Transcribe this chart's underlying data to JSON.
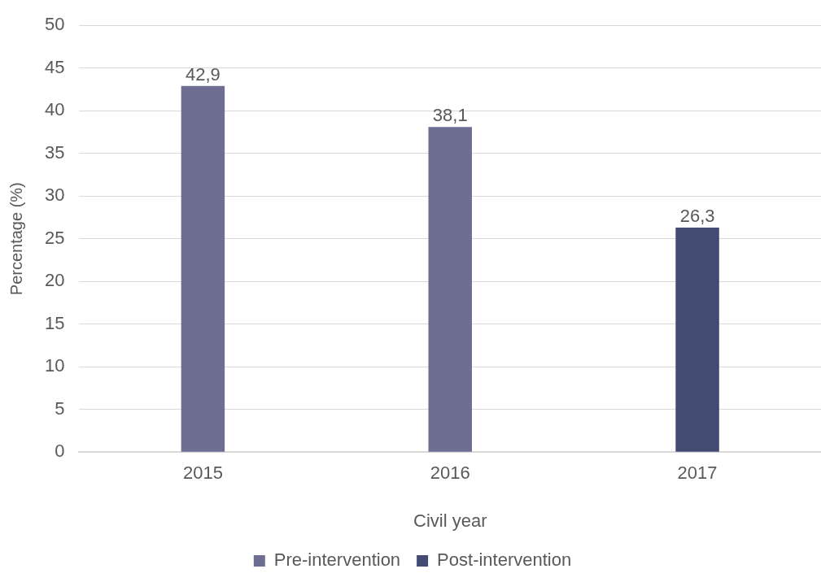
{
  "chart_data": {
    "type": "bar",
    "xlabel": "Civil year",
    "ylabel": "Percentage (%)",
    "categories": [
      "2015",
      "2016",
      "2017"
    ],
    "series": [
      {
        "name": "Pre-intervention",
        "color": "#6e6d92",
        "values": [
          42.9,
          38.1,
          null
        ],
        "value_labels": [
          "42,9",
          "38,1",
          null
        ]
      },
      {
        "name": "Post-intervention",
        "color": "#434b72",
        "values": [
          null,
          null,
          26.3
        ],
        "value_labels": [
          null,
          null,
          "26,3"
        ]
      }
    ],
    "ylim": [
      0,
      50
    ],
    "yticks": [
      0,
      5,
      10,
      15,
      20,
      25,
      30,
      35,
      40,
      45,
      50
    ],
    "grid": "y",
    "legend": "bottom"
  }
}
